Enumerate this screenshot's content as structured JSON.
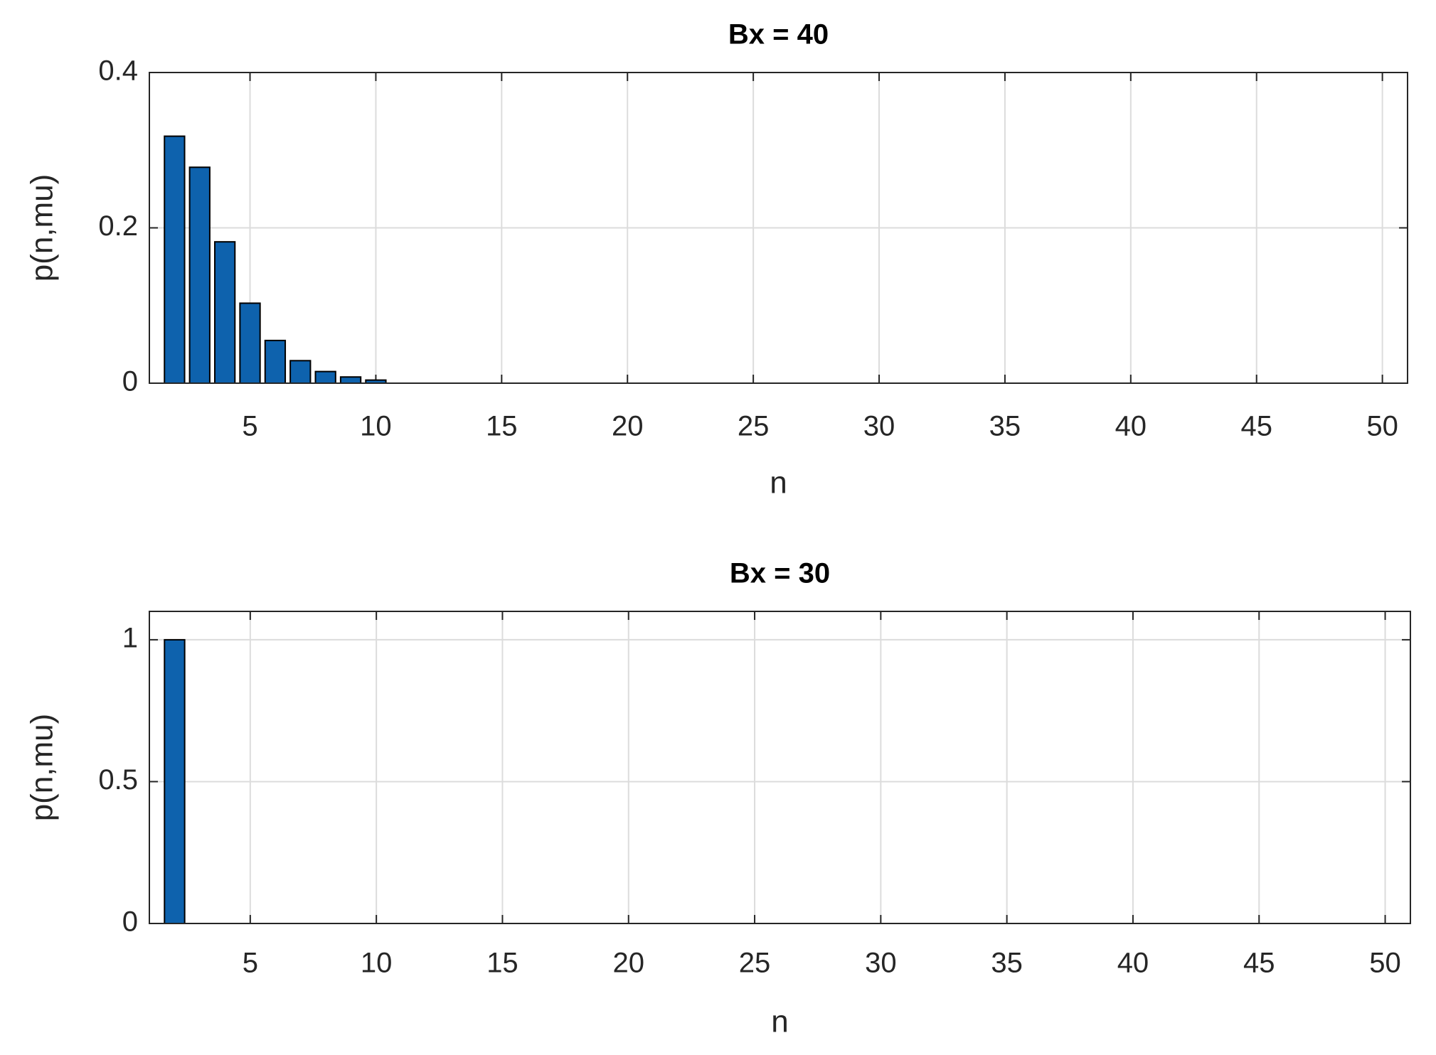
{
  "chart_data": [
    {
      "type": "bar",
      "title": "Bx = 40",
      "xlabel": "n",
      "ylabel": "p(n,mu)",
      "x": [
        2,
        3,
        4,
        5,
        6,
        7,
        8,
        9,
        10
      ],
      "values": [
        0.318,
        0.278,
        0.182,
        0.103,
        0.055,
        0.029,
        0.015,
        0.008,
        0.004
      ],
      "color": "#0e62ad",
      "xlim": [
        1,
        51
      ],
      "ylim": [
        0,
        0.4
      ],
      "xticks": [
        5,
        10,
        15,
        20,
        25,
        30,
        35,
        40,
        45,
        50
      ],
      "yticks": [
        0,
        0.2,
        0.4
      ],
      "grid": true
    },
    {
      "type": "bar",
      "title": "Bx = 30",
      "xlabel": "n",
      "ylabel": "p(n,mu)",
      "x": [
        2
      ],
      "values": [
        1
      ],
      "color": "#0e62ad",
      "xlim": [
        1,
        51
      ],
      "ylim": [
        0,
        1.1
      ],
      "xticks": [
        5,
        10,
        15,
        20,
        25,
        30,
        35,
        40,
        45,
        50
      ],
      "yticks": [
        0,
        0.5,
        1
      ],
      "grid": true
    }
  ]
}
